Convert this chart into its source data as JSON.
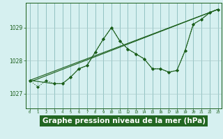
{
  "background_color": "#d6f0f0",
  "label_bg_color": "#338833",
  "grid_color_v": "#88bbbb",
  "grid_color_h": "#aacccc",
  "line_color": "#1a5e1a",
  "xlabel": "Graphe pression niveau de la mer (hPa)",
  "xlabel_fontsize": 7.5,
  "xlim": [
    -0.5,
    23.5
  ],
  "ylim": [
    1026.55,
    1029.75
  ],
  "yticks": [
    1027,
    1028,
    1029
  ],
  "xticks": [
    0,
    1,
    2,
    3,
    4,
    5,
    6,
    7,
    8,
    9,
    10,
    11,
    12,
    13,
    14,
    15,
    16,
    17,
    18,
    19,
    20,
    21,
    22,
    23
  ],
  "series": [
    {
      "x": [
        0,
        1,
        2,
        3,
        4,
        5,
        6,
        7,
        8,
        9,
        10,
        11,
        12,
        13,
        14,
        15,
        16,
        17,
        18,
        19,
        20,
        21,
        22,
        23
      ],
      "y": [
        1027.4,
        1027.2,
        1027.4,
        1027.3,
        1027.3,
        1027.5,
        1027.75,
        1027.85,
        1028.25,
        1028.65,
        1029.0,
        1028.6,
        1028.35,
        1028.2,
        1028.05,
        1027.75,
        1027.75,
        1027.65,
        1027.7,
        1028.3,
        1029.1,
        1029.25,
        1029.45,
        1029.55
      ],
      "style": ":",
      "marker": "D",
      "markersize": 2.0,
      "linewidth": 0.8,
      "zorder": 4
    },
    {
      "x": [
        0,
        23
      ],
      "y": [
        1027.4,
        1029.55
      ],
      "style": "-",
      "marker": null,
      "markersize": 0,
      "linewidth": 0.8,
      "zorder": 2
    },
    {
      "x": [
        0,
        23
      ],
      "y": [
        1027.35,
        1029.55
      ],
      "style": "-",
      "marker": null,
      "markersize": 0,
      "linewidth": 0.8,
      "zorder": 2
    },
    {
      "x": [
        0,
        3,
        4,
        5,
        6,
        7,
        8,
        9,
        10,
        11,
        12,
        13,
        14,
        15,
        16,
        17,
        18,
        19,
        20,
        21,
        22,
        23
      ],
      "y": [
        1027.4,
        1027.3,
        1027.3,
        1027.5,
        1027.75,
        1027.85,
        1028.25,
        1028.65,
        1029.0,
        1028.6,
        1028.35,
        1028.2,
        1028.05,
        1027.75,
        1027.75,
        1027.65,
        1027.7,
        1028.3,
        1029.1,
        1029.25,
        1029.45,
        1029.55
      ],
      "style": "-",
      "marker": "D",
      "markersize": 2.0,
      "linewidth": 0.8,
      "zorder": 3
    }
  ]
}
